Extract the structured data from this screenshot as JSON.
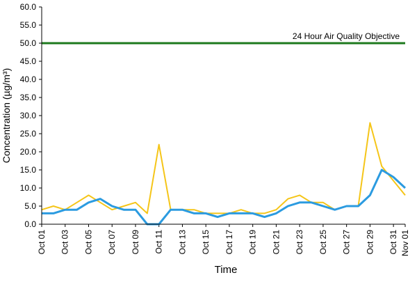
{
  "chart_data": {
    "type": "line",
    "xlabel": "Time",
    "ylabel": "Concentration (µg/m³)",
    "categories": [
      "Oct 01",
      null,
      "Oct 03",
      null,
      "Oct 05",
      null,
      "Oct 07",
      null,
      "Oct 09",
      null,
      "Oct 11",
      null,
      "Oct 13",
      null,
      "Oct 15",
      null,
      "Oct 17",
      null,
      "Oct 19",
      null,
      "Oct 21",
      null,
      "Oct 23",
      null,
      "Oct 25",
      null,
      "Oct 27",
      null,
      "Oct 29",
      null,
      "Oct 31",
      "Nov 01"
    ],
    "series": [
      {
        "color": "#f5c518",
        "values": [
          4,
          5,
          4,
          6,
          8,
          6,
          4,
          5,
          6,
          3,
          22,
          4,
          4,
          4,
          3,
          3,
          3,
          4,
          3,
          3,
          4,
          7,
          8,
          6,
          6,
          4,
          5,
          5,
          28,
          16,
          12,
          8
        ]
      },
      {
        "color": "#2b9be0",
        "values": [
          3,
          3,
          4,
          4,
          6,
          7,
          5,
          4,
          4,
          0,
          0,
          4,
          4,
          3,
          3,
          2,
          3,
          3,
          3,
          2,
          3,
          5,
          6,
          6,
          5,
          4,
          5,
          5,
          8,
          15,
          13,
          10
        ]
      }
    ],
    "objective": {
      "value": 50,
      "label": "24 Hour Air Quality Objective",
      "color": "#1e7a1e"
    },
    "ylim": [
      0,
      60
    ],
    "yticks": [
      {
        "value": 0,
        "label": "0.0"
      },
      {
        "value": 5,
        "label": "5.0"
      },
      {
        "value": 10,
        "label": "10.0"
      },
      {
        "value": 15,
        "label": "15.0"
      },
      {
        "value": 20,
        "label": "20.0"
      },
      {
        "value": 25,
        "label": "25.0"
      },
      {
        "value": 30,
        "label": "30.0"
      },
      {
        "value": 35,
        "label": "35.0"
      },
      {
        "value": 40,
        "label": "40.0"
      },
      {
        "value": 45,
        "label": "45.0"
      },
      {
        "value": 50,
        "label": "50.0"
      },
      {
        "value": 55,
        "label": "55.0"
      },
      {
        "value": 60,
        "label": "60.0"
      }
    ],
    "grid": false
  }
}
